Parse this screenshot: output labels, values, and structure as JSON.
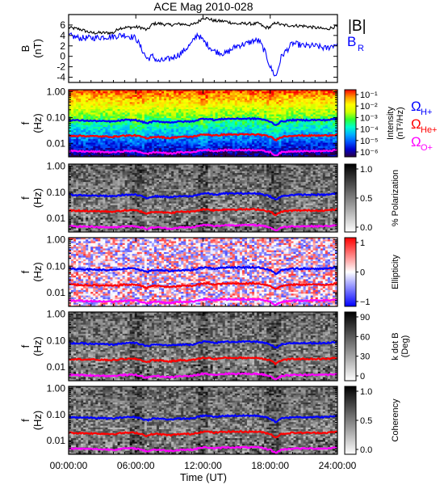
{
  "chart_data": {
    "title": "ACE Mag 2010-028",
    "x_axis": {
      "label": "Time (UT)",
      "ticks": [
        "00:00:00",
        "06:00:00",
        "12:00:00",
        "18:00:00",
        "24:00:00"
      ],
      "range_hours": [
        0,
        24
      ]
    },
    "panels": [
      {
        "type": "line",
        "ylabel": "B",
        "yunit": "(nT)",
        "ylim": [
          -5,
          8
        ],
        "ytick_values": [
          -4,
          -2,
          0,
          2,
          4,
          6
        ],
        "ytick_labels": [
          "-4",
          "-2",
          "0",
          "2",
          "4",
          "6"
        ],
        "series": [
          {
            "name": "|B|",
            "color": "#000000",
            "x_hours": [
              0,
              1,
              2,
              3,
              4,
              4.5,
              5,
              6,
              6.5,
              7,
              7.5,
              8,
              9,
              10,
              11,
              11.5,
              12,
              12.5,
              13,
              14,
              15,
              16,
              16.5,
              17,
              17.5,
              18,
              18.5,
              19,
              20,
              21,
              22,
              23,
              24
            ],
            "values": [
              5.5,
              5.2,
              4.5,
              4.5,
              4.5,
              5.4,
              5.5,
              5.6,
              5.5,
              5.0,
              6.2,
              6.3,
              6.0,
              6.2,
              6.0,
              6.5,
              7.4,
              7.2,
              6.8,
              6.7,
              6.2,
              6.3,
              6.2,
              6.3,
              5.5,
              5.6,
              6.5,
              6.0,
              5.9,
              5.8,
              5.5,
              5.2,
              5.8
            ]
          },
          {
            "name": "B",
            "name_sub": "R",
            "color": "#0000ff",
            "x_hours": [
              0,
              1,
              2,
              3,
              4,
              4.5,
              5,
              6,
              6.5,
              7,
              7.5,
              8,
              9,
              10,
              11,
              11.5,
              12,
              12.5,
              13,
              14,
              15,
              16,
              16.5,
              17,
              17.5,
              18,
              18.5,
              19,
              20,
              21,
              22,
              23,
              24
            ],
            "values": [
              4.0,
              3.5,
              3.5,
              3.7,
              3.8,
              4.0,
              4.1,
              3.5,
              1.5,
              -0.5,
              0.0,
              -1.0,
              -0.5,
              0.5,
              2.5,
              4.3,
              3.0,
              2.0,
              1.0,
              0.5,
              2.0,
              2.5,
              3.0,
              3.0,
              1.0,
              -2.0,
              -4.0,
              0.0,
              2.5,
              2.0,
              2.0,
              1.5,
              2.5
            ]
          }
        ]
      },
      {
        "type": "heatmap",
        "ylabel": "f",
        "yunit": "(Hz)",
        "ylim": [
          0.003,
          1.2
        ],
        "ylog": true,
        "ytick_values": [
          1.0,
          0.1,
          0.01
        ],
        "ytick_labels": [
          "1.00",
          "0.10",
          "0.01"
        ],
        "colorbar": {
          "label": "Intensity",
          "label2": "(nT²/Hz)",
          "tick_labels": [
            "10⁻¹",
            "10⁻²",
            "10⁻³",
            "10⁻⁴",
            "10⁻⁵",
            "10⁻⁶"
          ],
          "scale": "log",
          "range": [
            1e-06,
            0.1
          ],
          "colors": [
            "#2b0040",
            "#0000cc",
            "#0055ff",
            "#00b0ff",
            "#00ffcc",
            "#30ff30",
            "#d0ff00",
            "#ffff00",
            "#ff9900",
            "#ff0000"
          ]
        },
        "legend": [
          {
            "label": "Ω",
            "sub": "H+",
            "color": "#0000ff"
          },
          {
            "label": "Ω",
            "sub": "He+",
            "color": "#ff0000"
          },
          {
            "label": "Ω",
            "sub": "O+",
            "color": "#ff00ff"
          }
        ]
      },
      {
        "type": "heatmap",
        "ylabel": "f",
        "yunit": "(Hz)",
        "ylim": [
          0.003,
          1.2
        ],
        "ylog": true,
        "ytick_values": [
          1.0,
          0.1,
          0.01
        ],
        "ytick_labels": [
          "1.00",
          "0.10",
          "0.01"
        ],
        "colorbar": {
          "label": "% Polarization",
          "tick_labels": [
            "1.0",
            "0.5",
            "0.0"
          ],
          "range": [
            0,
            1
          ],
          "colors": [
            "#ffffff",
            "#000000"
          ]
        }
      },
      {
        "type": "heatmap",
        "ylabel": "f",
        "yunit": "(Hz)",
        "ylim": [
          0.003,
          1.2
        ],
        "ylog": true,
        "ytick_values": [
          1.0,
          0.1,
          0.01
        ],
        "ytick_labels": [
          "1.00",
          "0.10",
          "0.01"
        ],
        "colorbar": {
          "label": "Ellipticity",
          "tick_labels": [
            "1",
            "0",
            "−1"
          ],
          "range": [
            -1,
            1
          ],
          "colors": [
            "#0000ff",
            "#ffffff",
            "#ff0000"
          ]
        }
      },
      {
        "type": "heatmap",
        "ylabel": "f",
        "yunit": "(Hz)",
        "ylim": [
          0.003,
          1.2
        ],
        "ylog": true,
        "ytick_values": [
          1.0,
          0.1,
          0.01
        ],
        "ytick_labels": [
          "1.00",
          "0.10",
          "0.01"
        ],
        "colorbar": {
          "label": "k dot B",
          "label2": "(Deg)",
          "tick_labels": [
            "90",
            "60",
            "30",
            "0"
          ],
          "range": [
            0,
            90
          ],
          "colors": [
            "#ffffff",
            "#000000"
          ]
        }
      },
      {
        "type": "heatmap",
        "ylabel": "f",
        "yunit": "(Hz)",
        "ylim": [
          0.003,
          1.2
        ],
        "ylog": true,
        "ytick_values": [
          1.0,
          0.1,
          0.01
        ],
        "ytick_labels": [
          "1.00",
          "0.10",
          "0.01"
        ],
        "colorbar": {
          "label": "Coherency",
          "tick_labels": [
            "1.0",
            "0.5",
            "0.0"
          ],
          "range": [
            0,
            1
          ],
          "colors": [
            "#ffffff",
            "#000000"
          ]
        }
      }
    ],
    "gyrofrequency_lines": [
      {
        "name": "H+",
        "color": "#0000ff",
        "x_hours": [
          0,
          2,
          4,
          5,
          6,
          6.5,
          7,
          7.5,
          8,
          9,
          10,
          11,
          12,
          12.5,
          13,
          14,
          15,
          16,
          17,
          17.5,
          18,
          18.5,
          19,
          20,
          21,
          22,
          23,
          24
        ],
        "values_hz": [
          0.08,
          0.075,
          0.07,
          0.08,
          0.08,
          0.07,
          0.06,
          0.07,
          0.07,
          0.065,
          0.07,
          0.07,
          0.09,
          0.09,
          0.08,
          0.09,
          0.09,
          0.09,
          0.09,
          0.08,
          0.07,
          0.05,
          0.07,
          0.08,
          0.08,
          0.08,
          0.08,
          0.09
        ]
      },
      {
        "name": "He+",
        "color": "#ff0000",
        "x_hours": [
          0,
          2,
          4,
          5,
          6,
          6.5,
          7,
          7.5,
          8,
          9,
          10,
          11,
          12,
          12.5,
          13,
          14,
          15,
          16,
          17,
          17.5,
          18,
          18.5,
          19,
          20,
          21,
          22,
          23,
          24
        ],
        "values_hz": [
          0.02,
          0.019,
          0.018,
          0.02,
          0.02,
          0.018,
          0.015,
          0.018,
          0.018,
          0.016,
          0.018,
          0.018,
          0.022,
          0.022,
          0.02,
          0.022,
          0.022,
          0.022,
          0.022,
          0.02,
          0.018,
          0.013,
          0.018,
          0.02,
          0.02,
          0.02,
          0.02,
          0.022
        ]
      },
      {
        "name": "O+",
        "color": "#ff00ff",
        "x_hours": [
          0,
          2,
          4,
          5,
          6,
          6.5,
          7,
          7.5,
          8,
          9,
          10,
          11,
          12,
          12.5,
          13,
          14,
          15,
          16,
          17,
          17.5,
          18,
          18.5,
          19,
          20,
          21,
          22,
          23,
          24
        ],
        "values_hz": [
          0.005,
          0.0048,
          0.0045,
          0.005,
          0.005,
          0.0045,
          0.0038,
          0.0045,
          0.0045,
          0.004,
          0.0045,
          0.0045,
          0.0055,
          0.0055,
          0.005,
          0.0055,
          0.0055,
          0.0055,
          0.0055,
          0.005,
          0.0045,
          0.0033,
          0.0045,
          0.005,
          0.005,
          0.005,
          0.005,
          0.0055
        ]
      }
    ]
  }
}
